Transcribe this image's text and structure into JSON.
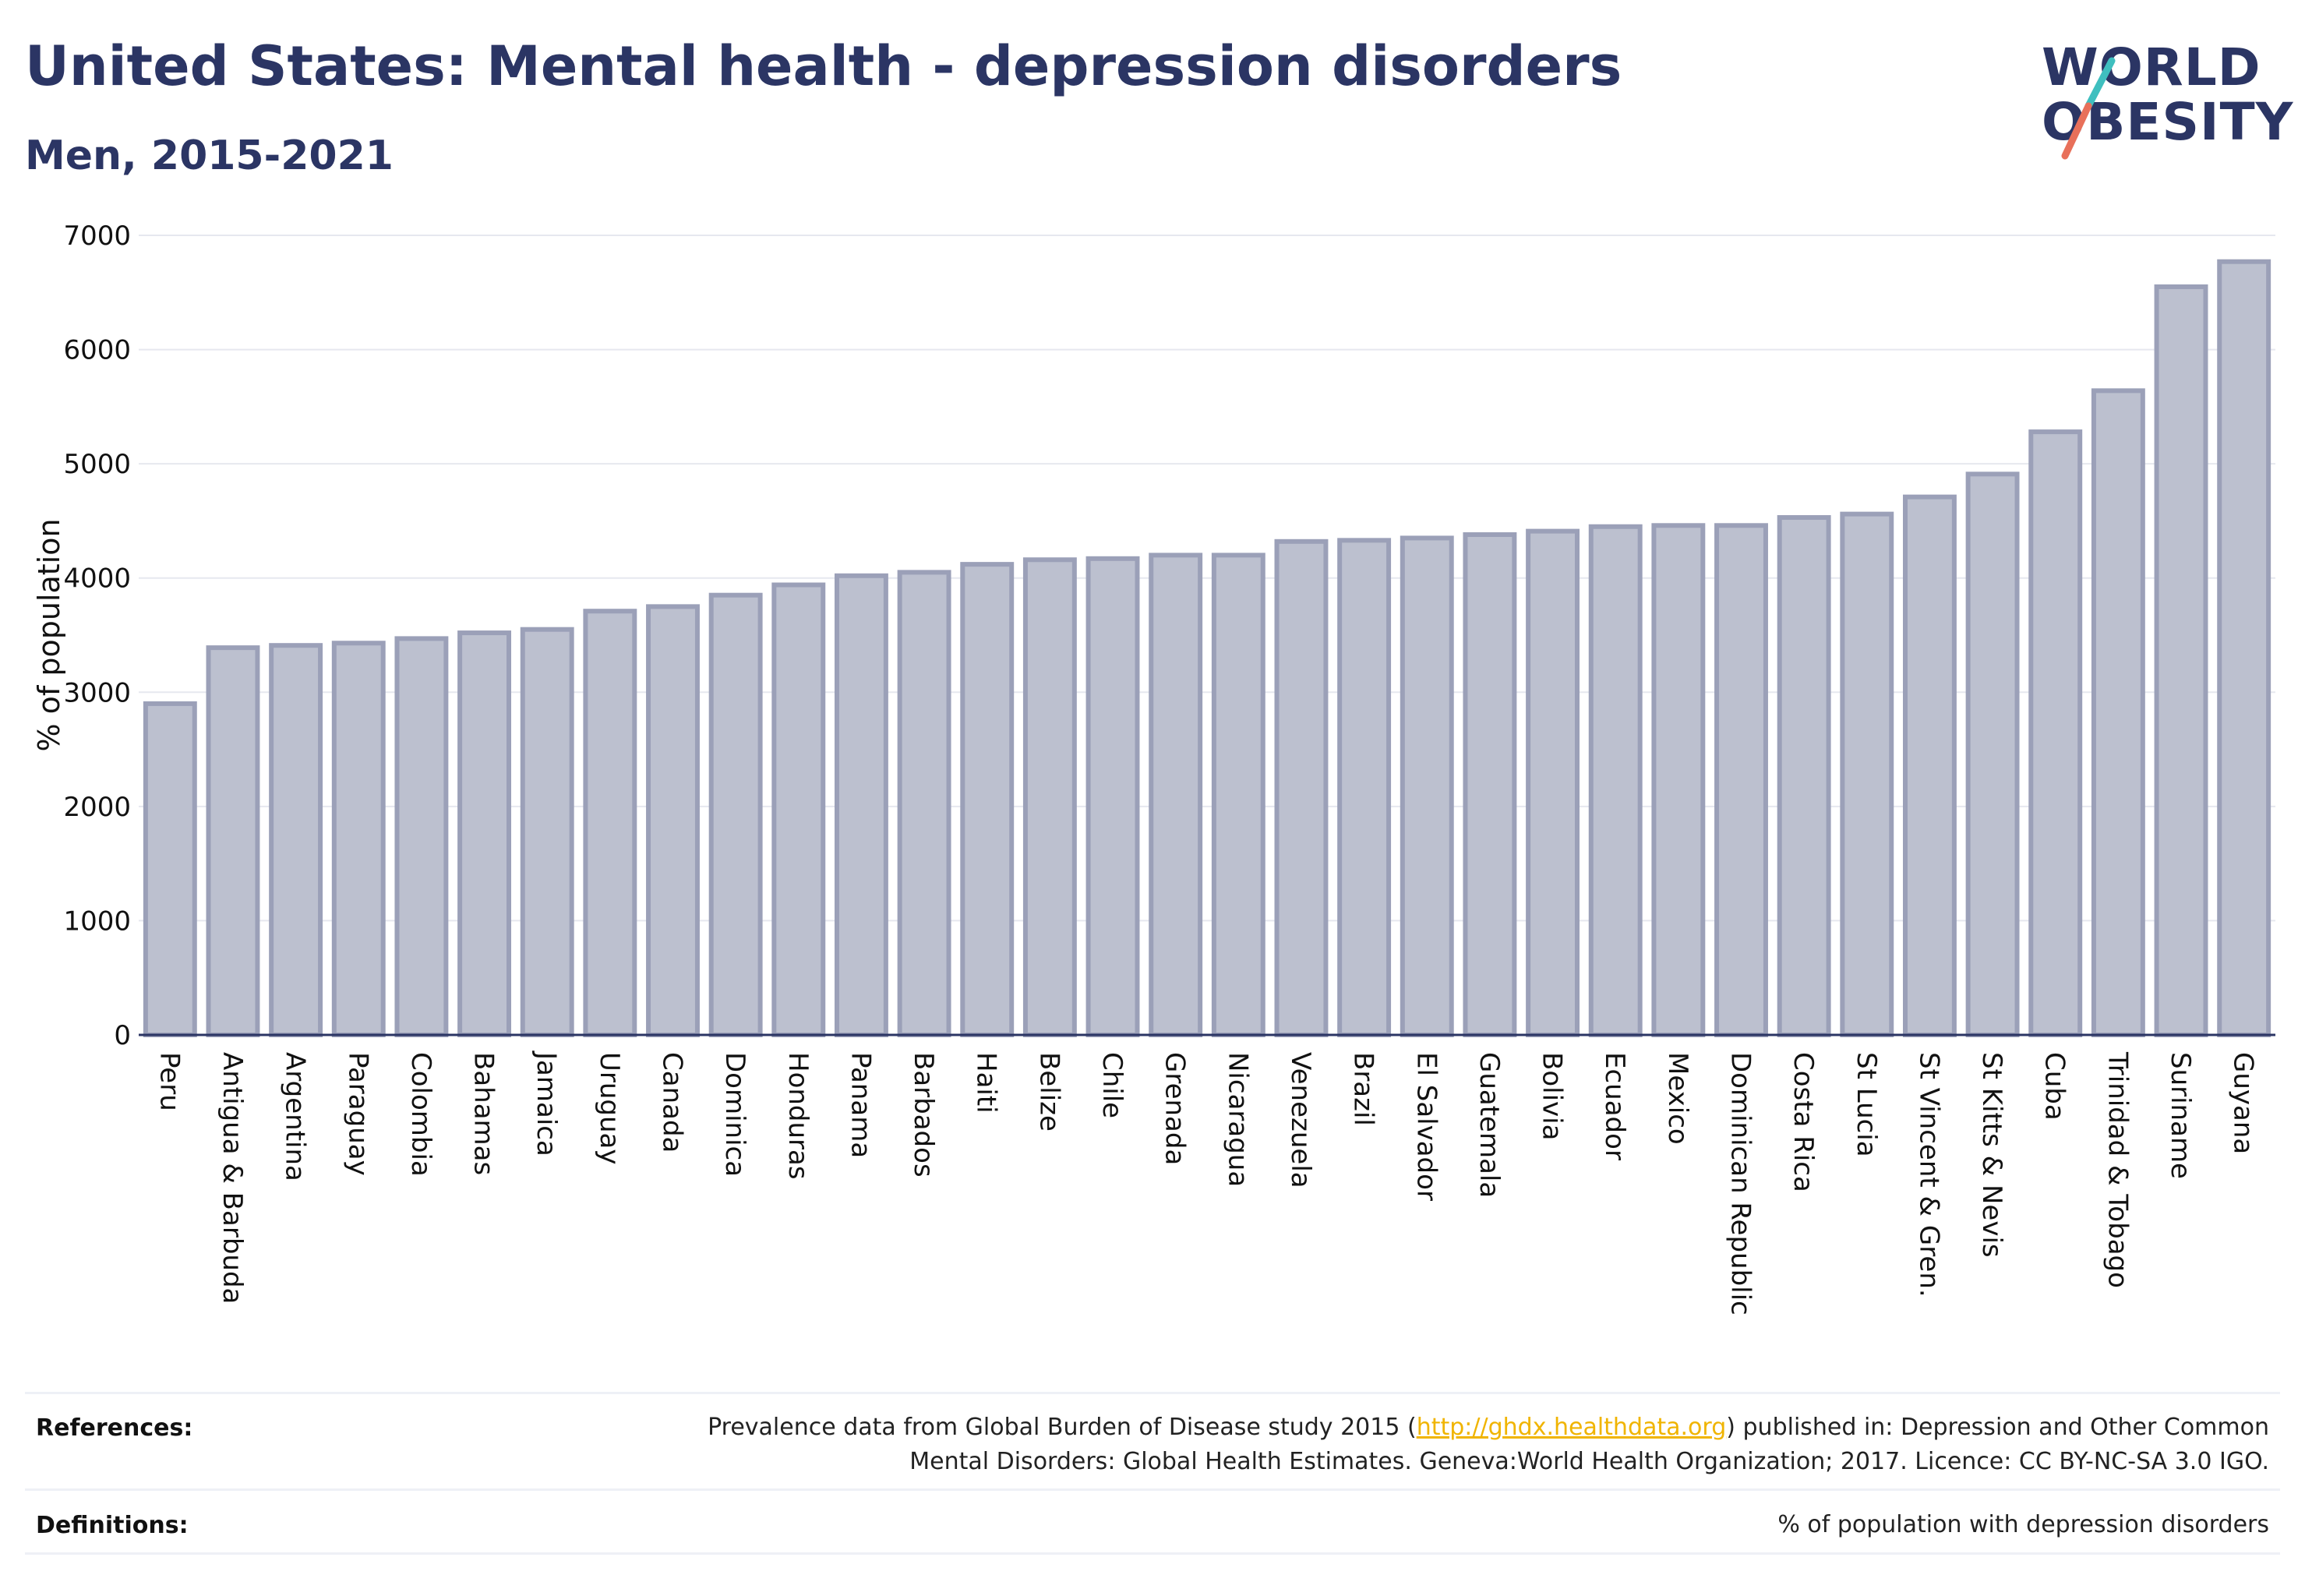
{
  "header": {
    "title": "United States: Mental health - depression disorders",
    "subtitle": "Men, 2015-2021"
  },
  "logo": {
    "line1": "WORLD",
    "line2": "OBESITY",
    "colors": {
      "text": "#2b3564",
      "slash_top": "#3fbfbf",
      "slash_bottom": "#e8705a"
    }
  },
  "footer": {
    "references_label": "References:",
    "references_text_before": "Prevalence data from Global Burden of Disease study 2015 (",
    "references_link": "http://ghdx.healthdata.org",
    "references_text_after": ") published in: Depression and Other Common",
    "references_line2": "Mental Disorders: Global Health Estimates. Geneva:World Health Organization; 2017. Licence: CC BY-NC-SA 3.0 IGO.",
    "definitions_label": "Definitions:",
    "definitions_text": "% of population with depression disorders"
  },
  "chart_data": {
    "type": "bar",
    "title": "United States: Mental health - depression disorders",
    "subtitle": "Men, 2015-2021",
    "ylabel": "% of population",
    "xlabel": "",
    "ylim": [
      0,
      7000
    ],
    "yticks": [
      0,
      1000,
      2000,
      3000,
      4000,
      5000,
      6000,
      7000
    ],
    "grid": true,
    "legend": "none",
    "bar_fill": "#bcc0cf",
    "bar_stroke": "#9ba0b8",
    "categories": [
      "Peru",
      "Antigua & Barbuda",
      "Argentina",
      "Paraguay",
      "Colombia",
      "Bahamas",
      "Jamaica",
      "Uruguay",
      "Canada",
      "Dominica",
      "Honduras",
      "Panama",
      "Barbados",
      "Haiti",
      "Belize",
      "Chile",
      "Grenada",
      "Nicaragua",
      "Venezuela",
      "Brazil",
      "El Salvador",
      "Guatemala",
      "Bolivia",
      "Ecuador",
      "Mexico",
      "Dominican Republic",
      "Costa Rica",
      "St Lucia",
      "St Vincent & Gren.",
      "St Kitts & Nevis",
      "Cuba",
      "Trinidad & Tobago",
      "Suriname",
      "Guyana"
    ],
    "values": [
      2900,
      3390,
      3410,
      3430,
      3470,
      3520,
      3550,
      3710,
      3750,
      3850,
      3940,
      4020,
      4050,
      4120,
      4160,
      4170,
      4200,
      4200,
      4320,
      4330,
      4350,
      4380,
      4410,
      4450,
      4460,
      4460,
      4530,
      4560,
      4710,
      4910,
      5280,
      5640,
      6550,
      6770
    ]
  }
}
